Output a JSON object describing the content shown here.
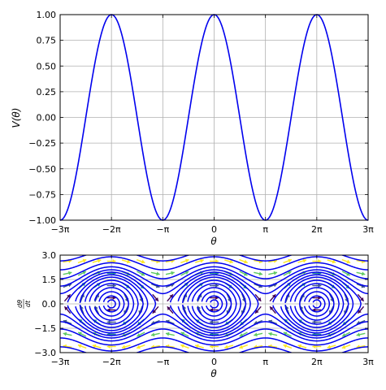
{
  "chart_data": [
    {
      "type": "line",
      "function": "cos(theta)",
      "x_range": [
        -9.424778,
        9.424778
      ],
      "xlim": [
        -9.424778,
        9.424778
      ],
      "ylim": [
        -1.0,
        1.0
      ],
      "xlabel": "θ",
      "ylabel": "V(θ)",
      "x_ticks": [
        {
          "value": -9.424778,
          "label": "−3π"
        },
        {
          "value": -6.283185,
          "label": "−2π"
        },
        {
          "value": -3.141593,
          "label": "−π"
        },
        {
          "value": 0,
          "label": "0"
        },
        {
          "value": 3.141593,
          "label": "π"
        },
        {
          "value": 6.283185,
          "label": "2π"
        },
        {
          "value": 9.424778,
          "label": "3π"
        }
      ],
      "y_ticks": [
        {
          "value": 1.0,
          "label": "1.00"
        },
        {
          "value": 0.75,
          "label": "0.75"
        },
        {
          "value": 0.5,
          "label": "0.50"
        },
        {
          "value": 0.25,
          "label": "0.25"
        },
        {
          "value": 0.0,
          "label": "0.00"
        },
        {
          "value": -0.25,
          "label": "−0.25"
        },
        {
          "value": -0.5,
          "label": "−0.50"
        },
        {
          "value": -0.75,
          "label": "−0.75"
        },
        {
          "value": -1.0,
          "label": "−1.00"
        }
      ],
      "series": [
        {
          "color": "#0000ee"
        }
      ],
      "grid": true
    },
    {
      "type": "phase-portrait",
      "system": "dtheta/dt = omega, domega/dt = -sin(theta)",
      "xlim": [
        -9.424778,
        9.424778
      ],
      "ylim": [
        -3.0,
        3.0
      ],
      "xlabel": "θ",
      "ylabel_num": "dθ",
      "ylabel_den": "dt",
      "x_ticks": [
        {
          "value": -9.424778,
          "label": "−3π"
        },
        {
          "value": -6.283185,
          "label": "−2π"
        },
        {
          "value": -3.141593,
          "label": "−π"
        },
        {
          "value": 0,
          "label": "0"
        },
        {
          "value": 3.141593,
          "label": "π"
        },
        {
          "value": 6.283185,
          "label": "2π"
        },
        {
          "value": 9.424778,
          "label": "3π"
        }
      ],
      "y_ticks": [
        {
          "value": 3.0,
          "label": "3.0"
        },
        {
          "value": 1.5,
          "label": "1.5"
        },
        {
          "value": 0.0,
          "label": "0.0"
        },
        {
          "value": -1.5,
          "label": "−1.5"
        },
        {
          "value": -3.0,
          "label": "−3.0"
        }
      ],
      "trajectory_energies": [
        -0.97,
        -0.88,
        -0.72,
        -0.5,
        -0.22,
        0.05,
        0.35,
        0.6,
        0.9,
        1.2,
        1.6,
        2.2,
        3.2,
        4.5
      ],
      "trajectory_color": "#0000ee",
      "arrow_colormap": [
        "#440154",
        "#3b528b",
        "#21918c",
        "#5ec962",
        "#fde725"
      ],
      "grid": true
    }
  ]
}
